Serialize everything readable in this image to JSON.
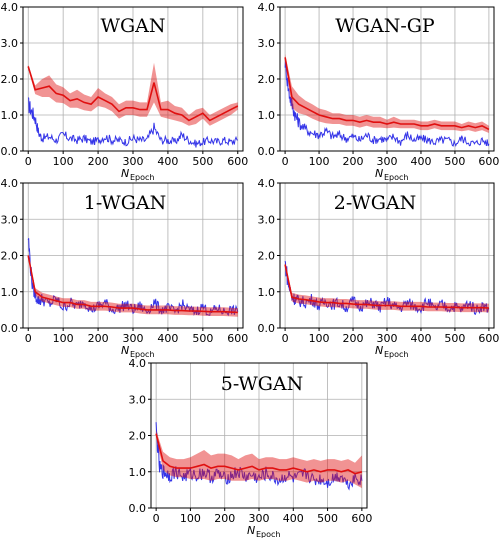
{
  "chart_data": [
    {
      "type": "line",
      "title": "WGAN",
      "xlabel_main": "N",
      "xlabel_sub": "Epoch",
      "xlim": [
        -15,
        615
      ],
      "ylim": [
        0,
        4.0
      ],
      "xticks": [
        0,
        100,
        200,
        300,
        400,
        500,
        600
      ],
      "yticks": [
        0.0,
        1.0,
        2.0,
        3.0,
        4.0
      ],
      "ytick_labels": [
        "0.0",
        "1.0",
        "2.0",
        "3.0",
        "4.0"
      ],
      "grid": true,
      "noisy_series": {
        "color": "#1f1fe6",
        "x": [
          0,
          10,
          20,
          30,
          40,
          60,
          80,
          100,
          120,
          140,
          160,
          180,
          200,
          220,
          240,
          260,
          280,
          300,
          320,
          340,
          360,
          380,
          400,
          420,
          440,
          460,
          480,
          500,
          520,
          540,
          560,
          580,
          600
        ],
        "y": [
          1.3,
          1.1,
          0.9,
          0.5,
          0.35,
          0.4,
          0.3,
          0.45,
          0.35,
          0.3,
          0.35,
          0.25,
          0.3,
          0.4,
          0.3,
          0.3,
          0.25,
          0.35,
          0.3,
          0.3,
          0.65,
          0.3,
          0.3,
          0.25,
          0.45,
          0.3,
          0.2,
          0.25,
          0.3,
          0.25,
          0.3,
          0.25,
          0.3
        ]
      },
      "mean_series": {
        "color": "#e01010",
        "x": [
          0,
          20,
          40,
          60,
          80,
          100,
          120,
          140,
          160,
          180,
          200,
          220,
          240,
          260,
          280,
          300,
          320,
          340,
          360,
          380,
          400,
          420,
          440,
          460,
          480,
          500,
          520,
          540,
          560,
          580,
          600
        ],
        "y": [
          2.35,
          1.7,
          1.75,
          1.8,
          1.6,
          1.55,
          1.4,
          1.45,
          1.35,
          1.3,
          1.5,
          1.4,
          1.3,
          1.1,
          1.2,
          1.2,
          1.15,
          1.15,
          1.9,
          1.15,
          1.15,
          1.05,
          1.0,
          0.85,
          0.95,
          1.05,
          0.85,
          0.95,
          1.05,
          1.15,
          1.25
        ],
        "spread": [
          0.05,
          0.12,
          0.25,
          0.3,
          0.25,
          0.22,
          0.2,
          0.25,
          0.22,
          0.2,
          0.25,
          0.2,
          0.2,
          0.2,
          0.2,
          0.2,
          0.2,
          0.2,
          0.55,
          0.2,
          0.25,
          0.2,
          0.2,
          0.15,
          0.2,
          0.15,
          0.15,
          0.15,
          0.15,
          0.15,
          0.1
        ]
      }
    },
    {
      "type": "line",
      "title": "WGAN-GP",
      "xlabel_main": "N",
      "xlabel_sub": "Epoch",
      "xlim": [
        -15,
        615
      ],
      "ylim": [
        0,
        4.0
      ],
      "xticks": [
        0,
        100,
        200,
        300,
        400,
        500,
        600
      ],
      "yticks": [
        0.0,
        1.0,
        2.0,
        3.0,
        4.0
      ],
      "ytick_labels": [
        "0.0",
        "1.0",
        "2.0",
        "3.0",
        "4.0"
      ],
      "grid": true,
      "noisy_series": {
        "color": "#1f1fe6",
        "x": [
          0,
          10,
          20,
          30,
          40,
          60,
          80,
          100,
          120,
          140,
          160,
          180,
          200,
          220,
          240,
          260,
          280,
          300,
          320,
          340,
          360,
          380,
          400,
          420,
          440,
          460,
          480,
          500,
          520,
          540,
          560,
          580,
          600
        ],
        "y": [
          2.5,
          1.7,
          1.3,
          1.0,
          0.8,
          0.6,
          0.5,
          0.45,
          0.55,
          0.4,
          0.45,
          0.35,
          0.4,
          0.3,
          0.45,
          0.3,
          0.35,
          0.3,
          0.4,
          0.25,
          0.45,
          0.3,
          0.35,
          0.3,
          0.25,
          0.3,
          0.3,
          0.2,
          0.35,
          0.25,
          0.2,
          0.3,
          0.2
        ]
      },
      "mean_series": {
        "color": "#e01010",
        "x": [
          0,
          20,
          40,
          60,
          80,
          100,
          120,
          140,
          160,
          180,
          200,
          220,
          240,
          260,
          280,
          300,
          320,
          340,
          360,
          380,
          400,
          420,
          440,
          460,
          480,
          500,
          520,
          540,
          560,
          580,
          600
        ],
        "y": [
          2.6,
          1.5,
          1.3,
          1.2,
          1.1,
          1.0,
          0.95,
          0.9,
          0.9,
          0.85,
          0.85,
          0.8,
          0.85,
          0.8,
          0.8,
          0.75,
          0.8,
          0.75,
          0.75,
          0.75,
          0.7,
          0.7,
          0.75,
          0.7,
          0.7,
          0.7,
          0.65,
          0.7,
          0.65,
          0.7,
          0.6
        ],
        "spread": [
          0.1,
          0.3,
          0.25,
          0.2,
          0.2,
          0.18,
          0.18,
          0.15,
          0.15,
          0.15,
          0.15,
          0.15,
          0.15,
          0.15,
          0.15,
          0.12,
          0.15,
          0.12,
          0.12,
          0.12,
          0.12,
          0.12,
          0.12,
          0.12,
          0.12,
          0.12,
          0.1,
          0.12,
          0.12,
          0.12,
          0.1
        ]
      }
    },
    {
      "type": "line",
      "title": "1-WGAN",
      "xlabel_main": "N",
      "xlabel_sub": "Epoch",
      "xlim": [
        -15,
        615
      ],
      "ylim": [
        0,
        4.0
      ],
      "xticks": [
        0,
        100,
        200,
        300,
        400,
        500,
        600
      ],
      "yticks": [
        0.0,
        1.0,
        2.0,
        3.0,
        4.0
      ],
      "ytick_labels": [
        "0.0",
        "1.0",
        "2.0",
        "3.0",
        "4.0"
      ],
      "grid": true,
      "noisy_series": {
        "color": "#1f1fe6",
        "x": [
          0,
          10,
          20,
          30,
          40,
          60,
          80,
          100,
          120,
          140,
          160,
          180,
          200,
          220,
          240,
          260,
          280,
          300,
          320,
          340,
          360,
          380,
          400,
          420,
          440,
          460,
          480,
          500,
          520,
          540,
          560,
          580,
          600
        ],
        "y": [
          2.5,
          1.3,
          0.9,
          0.75,
          0.8,
          0.65,
          0.8,
          0.55,
          0.7,
          0.6,
          0.75,
          0.5,
          0.6,
          0.7,
          0.5,
          0.55,
          0.65,
          0.5,
          0.6,
          0.45,
          0.7,
          0.5,
          0.55,
          0.45,
          0.65,
          0.5,
          0.45,
          0.6,
          0.4,
          0.55,
          0.45,
          0.5,
          0.45
        ]
      },
      "mean_series": {
        "color": "#e01010",
        "x": [
          0,
          20,
          40,
          60,
          80,
          100,
          120,
          140,
          160,
          180,
          200,
          220,
          240,
          260,
          280,
          300,
          320,
          340,
          360,
          380,
          400,
          420,
          440,
          460,
          480,
          500,
          520,
          540,
          560,
          580,
          600
        ],
        "y": [
          2.0,
          1.0,
          0.85,
          0.8,
          0.75,
          0.7,
          0.7,
          0.65,
          0.65,
          0.6,
          0.6,
          0.6,
          0.58,
          0.55,
          0.55,
          0.55,
          0.52,
          0.5,
          0.5,
          0.5,
          0.5,
          0.48,
          0.48,
          0.47,
          0.47,
          0.46,
          0.45,
          0.45,
          0.45,
          0.44,
          0.43
        ],
        "spread": [
          0.05,
          0.1,
          0.12,
          0.12,
          0.12,
          0.12,
          0.12,
          0.12,
          0.12,
          0.12,
          0.12,
          0.12,
          0.12,
          0.12,
          0.12,
          0.12,
          0.12,
          0.12,
          0.12,
          0.12,
          0.12,
          0.12,
          0.12,
          0.12,
          0.12,
          0.12,
          0.12,
          0.12,
          0.12,
          0.12,
          0.12
        ]
      }
    },
    {
      "type": "line",
      "title": "2-WGAN",
      "xlabel_main": "N",
      "xlabel_sub": "Epoch",
      "xlim": [
        -15,
        615
      ],
      "ylim": [
        0,
        4.0
      ],
      "xticks": [
        0,
        100,
        200,
        300,
        400,
        500,
        600
      ],
      "yticks": [
        0.0,
        1.0,
        2.0,
        3.0,
        4.0
      ],
      "ytick_labels": [
        "0.0",
        "1.0",
        "2.0",
        "3.0",
        "4.0"
      ],
      "grid": true,
      "noisy_series": {
        "color": "#1f1fe6",
        "x": [
          0,
          10,
          20,
          30,
          40,
          60,
          80,
          100,
          120,
          140,
          160,
          180,
          200,
          220,
          240,
          260,
          280,
          300,
          320,
          340,
          360,
          380,
          400,
          420,
          440,
          460,
          480,
          500,
          520,
          540,
          560,
          580,
          600
        ],
        "y": [
          1.8,
          1.2,
          0.85,
          0.8,
          0.75,
          0.7,
          0.8,
          0.6,
          0.75,
          0.65,
          0.7,
          0.55,
          0.75,
          0.6,
          0.65,
          0.7,
          0.55,
          0.75,
          0.6,
          0.55,
          0.7,
          0.6,
          0.55,
          0.75,
          0.5,
          0.65,
          0.55,
          0.6,
          0.5,
          0.7,
          0.5,
          0.6,
          0.55
        ]
      },
      "mean_series": {
        "color": "#e01010",
        "x": [
          0,
          20,
          40,
          60,
          80,
          100,
          120,
          140,
          160,
          180,
          200,
          220,
          240,
          260,
          280,
          300,
          320,
          340,
          360,
          380,
          400,
          420,
          440,
          460,
          480,
          500,
          520,
          540,
          560,
          580,
          600
        ],
        "y": [
          1.75,
          0.85,
          0.8,
          0.78,
          0.75,
          0.72,
          0.7,
          0.7,
          0.68,
          0.68,
          0.66,
          0.65,
          0.65,
          0.63,
          0.62,
          0.62,
          0.62,
          0.6,
          0.6,
          0.6,
          0.6,
          0.58,
          0.58,
          0.58,
          0.57,
          0.57,
          0.56,
          0.56,
          0.56,
          0.56,
          0.55
        ],
        "spread": [
          0.05,
          0.12,
          0.12,
          0.12,
          0.12,
          0.12,
          0.12,
          0.12,
          0.12,
          0.12,
          0.12,
          0.12,
          0.12,
          0.12,
          0.12,
          0.12,
          0.12,
          0.12,
          0.12,
          0.12,
          0.12,
          0.12,
          0.12,
          0.12,
          0.12,
          0.12,
          0.12,
          0.12,
          0.12,
          0.12,
          0.12
        ]
      }
    },
    {
      "type": "line",
      "title": "5-WGAN",
      "xlabel_main": "N",
      "xlabel_sub": "Epoch",
      "xlim": [
        -15,
        615
      ],
      "ylim": [
        0,
        4.0
      ],
      "xticks": [
        0,
        100,
        200,
        300,
        400,
        500,
        600
      ],
      "yticks": [
        0.0,
        1.0,
        2.0,
        3.0,
        4.0
      ],
      "ytick_labels": [
        "0.0",
        "1.0",
        "2.0",
        "3.0",
        "4.0"
      ],
      "grid": true,
      "noisy_series": {
        "color": "#1f1fe6",
        "x": [
          0,
          10,
          20,
          30,
          40,
          60,
          80,
          100,
          120,
          140,
          160,
          180,
          200,
          220,
          240,
          260,
          280,
          300,
          320,
          340,
          360,
          380,
          400,
          420,
          440,
          460,
          480,
          500,
          520,
          540,
          560,
          580,
          600
        ],
        "y": [
          2.2,
          1.1,
          1.0,
          0.95,
          0.9,
          1.0,
          0.85,
          0.95,
          0.9,
          1.0,
          0.85,
          0.95,
          0.8,
          0.9,
          1.0,
          0.85,
          0.9,
          0.8,
          0.95,
          0.85,
          0.75,
          0.9,
          0.8,
          0.85,
          0.95,
          0.75,
          0.8,
          0.7,
          0.85,
          0.9,
          0.65,
          0.85,
          0.75
        ]
      },
      "mean_series": {
        "color": "#e01010",
        "x": [
          0,
          20,
          40,
          60,
          80,
          100,
          120,
          140,
          160,
          180,
          200,
          220,
          240,
          260,
          280,
          300,
          320,
          340,
          360,
          380,
          400,
          420,
          440,
          460,
          480,
          500,
          520,
          540,
          560,
          580,
          600
        ],
        "y": [
          2.05,
          1.3,
          1.15,
          1.1,
          1.1,
          1.1,
          1.15,
          1.2,
          1.1,
          1.15,
          1.15,
          1.1,
          1.05,
          1.1,
          1.15,
          1.05,
          1.1,
          1.1,
          1.05,
          1.05,
          1.1,
          1.05,
          1.0,
          1.05,
          1.0,
          1.05,
          1.05,
          1.0,
          1.05,
          0.95,
          1.0
        ],
        "spread": [
          0.1,
          0.25,
          0.25,
          0.25,
          0.25,
          0.3,
          0.35,
          0.4,
          0.35,
          0.35,
          0.35,
          0.35,
          0.3,
          0.35,
          0.35,
          0.3,
          0.3,
          0.3,
          0.3,
          0.3,
          0.3,
          0.3,
          0.3,
          0.3,
          0.3,
          0.3,
          0.3,
          0.3,
          0.3,
          0.3,
          0.45
        ]
      }
    }
  ]
}
